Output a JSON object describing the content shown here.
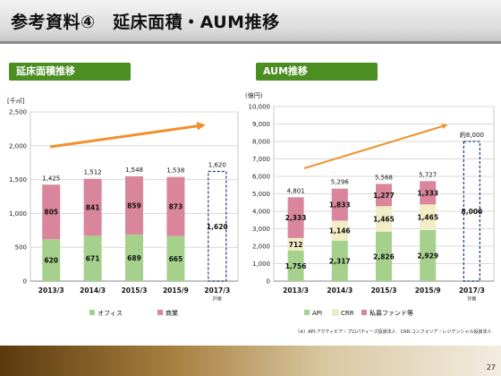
{
  "page_title": "参考資料④　延床面積・AUM推移",
  "left_section_label": "延床面積推移",
  "right_section_label": "AUM推移",
  "footnote": "（※）API:アクティビア・プロパティーズ投資法人　CRR:コンフォリア・レジデンシャル投資法人",
  "page_number": "27",
  "colors": {
    "office": "#a6d18c",
    "commercial": "#d9859b",
    "api": "#a6d18c",
    "crr": "#f2ecc7",
    "private": "#d9859b",
    "arrow": "#f0912e",
    "section": "#4b8e22",
    "target": "#1f3b78"
  },
  "chart_data": [
    {
      "type": "bar",
      "ylabel": "[千㎡]",
      "ylim": [
        0,
        2500
      ],
      "yticks": [
        0,
        500,
        1000,
        1500,
        2000,
        2500
      ],
      "categories": [
        "2013/3",
        "2014/3",
        "2015/3",
        "2015/9",
        "2017/3"
      ],
      "sub_labels": [
        "",
        "",
        "",
        "",
        "計画"
      ],
      "series": [
        {
          "name": "オフィス",
          "color": "#a6d18c",
          "values": [
            620,
            671,
            689,
            665,
            null
          ]
        },
        {
          "name": "商業",
          "color": "#d9859b",
          "values": [
            805,
            841,
            859,
            873,
            null
          ]
        }
      ],
      "totals": [
        1425,
        1512,
        1548,
        1538,
        1620
      ],
      "total_labels": [
        "1,425",
        "1,512",
        "1,548",
        "1,538",
        "1,620"
      ],
      "value_labels": [
        [
          "620",
          "671",
          "689",
          "665"
        ],
        [
          "805",
          "841",
          "859",
          "873"
        ]
      ],
      "target_label": "1,620",
      "grid": true,
      "legend_position": "bottom"
    },
    {
      "type": "bar",
      "ylabel": "(億円)",
      "ylim": [
        0,
        10000
      ],
      "yticks": [
        0,
        1000,
        2000,
        3000,
        4000,
        5000,
        6000,
        7000,
        8000,
        9000,
        10000
      ],
      "categories": [
        "2013/3",
        "2014/3",
        "2015/3",
        "2015/9",
        "2017/3"
      ],
      "sub_labels": [
        "",
        "",
        "",
        "",
        "計画"
      ],
      "series": [
        {
          "name": "API",
          "color": "#a6d18c",
          "values": [
            1756,
            2317,
            2826,
            2929,
            null
          ]
        },
        {
          "name": "CRR",
          "color": "#f2ecc7",
          "values": [
            712,
            1146,
            1465,
            1465,
            null
          ]
        },
        {
          "name": "私募ファンド等",
          "color": "#d9859b",
          "values": [
            2333,
            1833,
            1277,
            1333,
            null
          ]
        }
      ],
      "totals": [
        4801,
        5296,
        5568,
        5727,
        8000
      ],
      "total_labels": [
        "4,801",
        "5,296",
        "5,568",
        "5,727",
        "約8,000"
      ],
      "value_labels": [
        [
          "1,756",
          "2,317",
          "2,826",
          "2,929"
        ],
        [
          "712",
          "1,146",
          "1,465",
          "1,465"
        ],
        [
          "2,333",
          "1,833",
          "1,277",
          "1,333"
        ]
      ],
      "target_label": "8,000",
      "grid": true,
      "legend_position": "bottom"
    }
  ]
}
